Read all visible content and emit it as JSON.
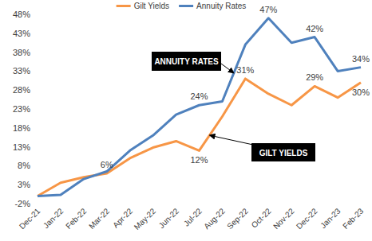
{
  "chart_data": {
    "type": "line",
    "categories": [
      "Dec-21",
      "Jan-22",
      "Feb-22",
      "Mar-22",
      "Apr-22",
      "May-22",
      "Jun-22",
      "Jul-22",
      "Aug-22",
      "Sep-22",
      "Oct-22",
      "Nov-22",
      "Dec-22",
      "Jan-23",
      "Feb-23"
    ],
    "series": [
      {
        "name": "Gilt Yields",
        "color": "#F79646",
        "values": [
          0,
          3.5,
          5,
          6,
          10,
          12.8,
          14.5,
          12,
          21,
          31,
          27,
          24,
          29,
          26,
          30
        ],
        "value_labels": [
          null,
          null,
          null,
          "6%",
          null,
          null,
          null,
          "12%",
          null,
          "31%",
          null,
          null,
          "29%",
          null,
          "30%"
        ]
      },
      {
        "name": "Annuity Rates",
        "color": "#4F81BD",
        "values": [
          0,
          0.3,
          4.5,
          6.5,
          12,
          16,
          21.5,
          24,
          25,
          40,
          47,
          40.5,
          42,
          33,
          34
        ],
        "value_labels": [
          null,
          null,
          null,
          null,
          null,
          null,
          null,
          "24%",
          null,
          null,
          "47%",
          null,
          "42%",
          null,
          "34%"
        ]
      }
    ],
    "ylim": [
      -2,
      48
    ],
    "yticks": [
      {
        "value": -2,
        "label": "-2%"
      },
      {
        "value": 3,
        "label": "3%"
      },
      {
        "value": 8,
        "label": "8%"
      },
      {
        "value": 13,
        "label": "13%"
      },
      {
        "value": 18,
        "label": "18%"
      },
      {
        "value": 23,
        "label": "23%"
      },
      {
        "value": 28,
        "label": "28%"
      },
      {
        "value": 33,
        "label": "33%"
      },
      {
        "value": 38,
        "label": "38%"
      },
      {
        "value": 43,
        "label": "43%"
      },
      {
        "value": 48,
        "label": "48%"
      }
    ],
    "grid": false,
    "legend": "top",
    "data_labels": true,
    "annotations": [
      "ANNUITY RATES",
      "GILT YIELDS"
    ]
  }
}
